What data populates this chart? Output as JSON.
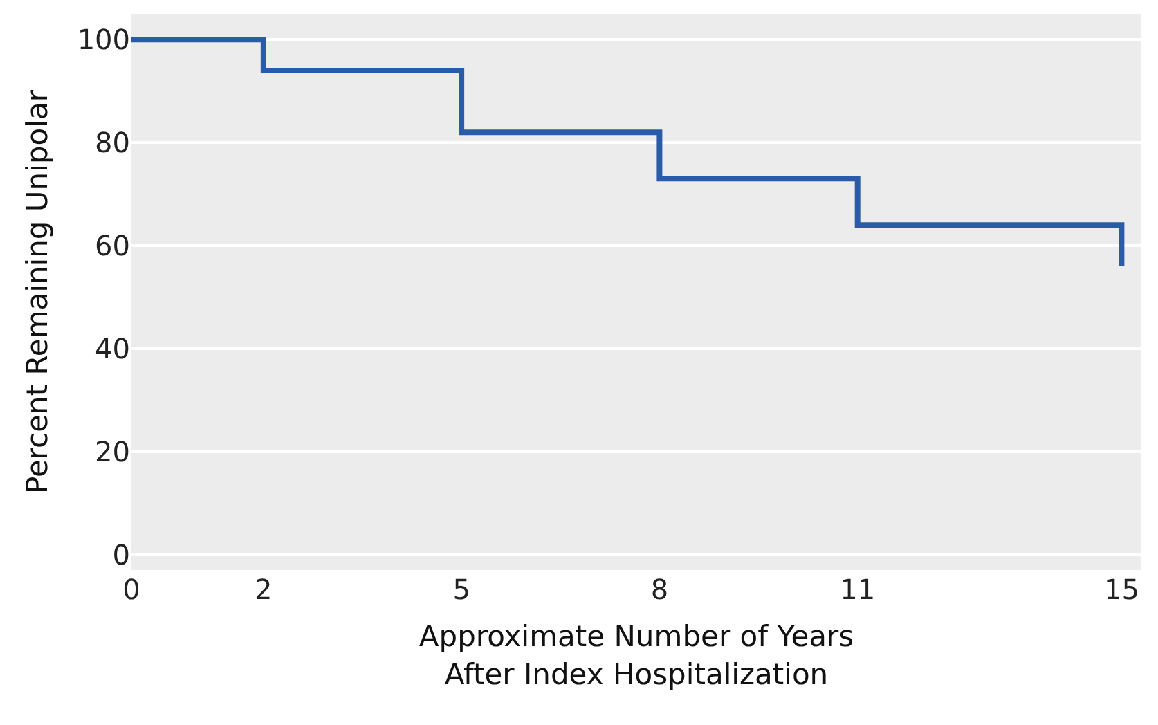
{
  "chart_data": {
    "type": "step",
    "xlabel": "Approximate Number of Years\nAfter Index Hospitalization",
    "ylabel": "Percent Remaining Unipolar",
    "x": [
      0,
      2,
      5,
      8,
      11,
      15
    ],
    "series": [
      {
        "color": "#2a5ba8",
        "values": [
          100,
          94,
          82,
          73,
          64,
          56
        ]
      }
    ],
    "xlim": [
      0,
      15.3
    ],
    "xticks": [
      0,
      2,
      5,
      8,
      11,
      15
    ],
    "ylim": [
      -3,
      105
    ],
    "yticks": [
      0,
      20,
      40,
      60,
      80,
      100
    ],
    "grid": "y"
  }
}
